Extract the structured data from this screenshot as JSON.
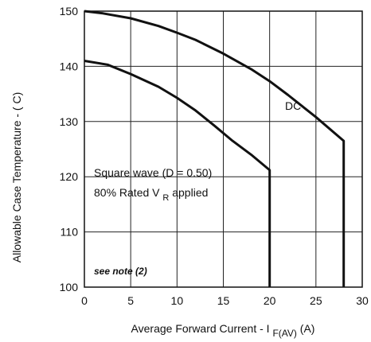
{
  "chart_data": {
    "type": "line",
    "xlabel": "Average Forward Current - I",
    "xlabel_subscript": "F(AV)",
    "xlabel_unit": "(A)",
    "ylabel": "Allowable Case Temperature - ( C)",
    "xlim": [
      0,
      30
    ],
    "ylim": [
      100,
      150
    ],
    "x_ticks": [
      "0",
      "5",
      "10",
      "15",
      "20",
      "25",
      "30"
    ],
    "y_ticks": [
      "100",
      "110",
      "120",
      "130",
      "140",
      "150"
    ],
    "grid": true,
    "series": [
      {
        "name": "DC",
        "x": [
          0,
          2,
          5,
          8,
          10,
          12,
          15,
          18,
          20,
          22,
          25,
          28,
          28
        ],
        "y": [
          150,
          149.6,
          148.7,
          147.3,
          146.1,
          144.8,
          142.3,
          139.5,
          137.3,
          134.8,
          130.8,
          126.5,
          100
        ]
      },
      {
        "name": "Square wave (D = 0.50)",
        "x": [
          0,
          2.5,
          5,
          8,
          10,
          12,
          14,
          16,
          18,
          20,
          20
        ],
        "y": [
          141,
          140.3,
          138.6,
          136.3,
          134.3,
          132.0,
          129.3,
          126.5,
          124.0,
          121.2,
          100
        ]
      }
    ],
    "annotations": {
      "dc_label": "DC",
      "square_line1": "Square wave (D = 0.50)",
      "square_line2_main": "80% Rated V",
      "square_line2_sub": "R",
      "square_line2_tail": "applied",
      "note": "see note (2)"
    }
  }
}
